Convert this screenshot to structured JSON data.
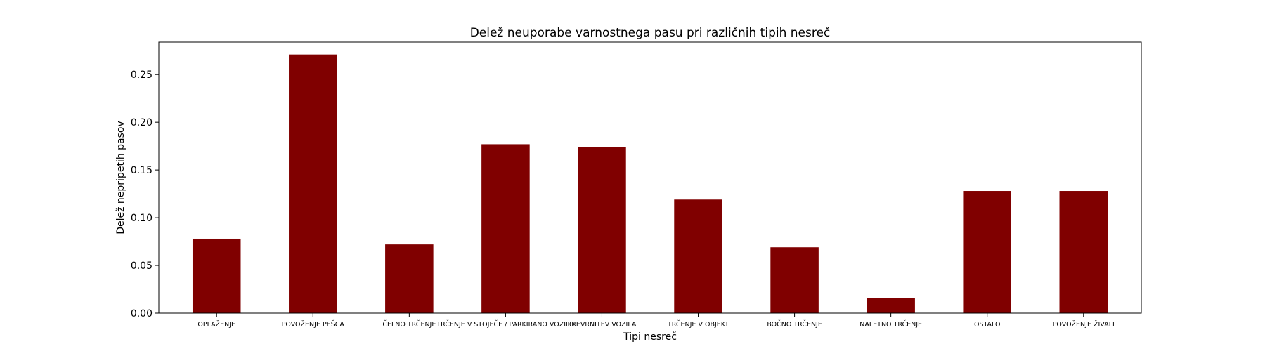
{
  "chart_data": {
    "type": "bar",
    "title": "Delež neuporabe varnostnega pasu pri različnih tipih nesreč",
    "xlabel": "Tipi nesreč",
    "ylabel": "Delež nepripetih pasov",
    "categories": [
      "OPLAŽENJE",
      "POVOŽENJE PEŠCA",
      "ČELNO TRČENJE",
      "TRČENJE V STOJEČE / PARKIRANO VOZILO",
      "PREVRNITEV VOZILA",
      "TRČENJE V OBJEKT",
      "BOČNO TRČENJE",
      "NALETNO TRČENJE",
      "OSTALO",
      "POVOŽENJE ŽIVALI"
    ],
    "values": [
      0.078,
      0.271,
      0.072,
      0.177,
      0.174,
      0.119,
      0.069,
      0.016,
      0.128,
      0.128
    ],
    "ylim": [
      0,
      0.284
    ],
    "yticks": [
      "0.00",
      "0.05",
      "0.10",
      "0.15",
      "0.20",
      "0.25"
    ],
    "bar_color": "#800000",
    "grid": false,
    "legend": "none"
  }
}
